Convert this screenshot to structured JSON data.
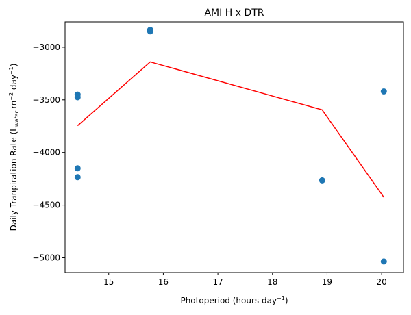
{
  "chart_data": {
    "type": "scatter",
    "title": "AMI H x DTR",
    "xlabel": {
      "main": "Photoperiod (hours day",
      "sup": "−1",
      "end": ")"
    },
    "ylabel": {
      "p1": "Daily Tranpiration Rate (L",
      "sub": "water",
      "p2": " m",
      "sup1": "−2",
      "p3": " day",
      "sup2": "−1",
      "p4": ")"
    },
    "xlim": [
      14.2,
      20.4
    ],
    "ylim": [
      -5140,
      -2760
    ],
    "xticks": [
      15,
      16,
      17,
      18,
      19,
      20
    ],
    "yticks": [
      -5000,
      -4500,
      -4000,
      -3500,
      -3000
    ],
    "ytick_labels": [
      "−5000",
      "−4500",
      "−4000",
      "−3500",
      "−3000"
    ],
    "grid": false,
    "series": [
      {
        "kind": "points",
        "color": "#1f77b4",
        "points": [
          {
            "x": 14.43,
            "y": -3450
          },
          {
            "x": 14.43,
            "y": -3475
          },
          {
            "x": 14.43,
            "y": -4150
          },
          {
            "x": 14.43,
            "y": -4235
          },
          {
            "x": 15.76,
            "y": -2835
          },
          {
            "x": 15.76,
            "y": -2850
          },
          {
            "x": 18.91,
            "y": -4265
          },
          {
            "x": 20.04,
            "y": -3420
          },
          {
            "x": 20.04,
            "y": -5035
          }
        ]
      },
      {
        "kind": "line",
        "color": "#ff0000",
        "points": [
          {
            "x": 14.43,
            "y": -3745
          },
          {
            "x": 15.76,
            "y": -3140
          },
          {
            "x": 18.91,
            "y": -3595
          },
          {
            "x": 20.04,
            "y": -4425
          }
        ]
      }
    ]
  }
}
